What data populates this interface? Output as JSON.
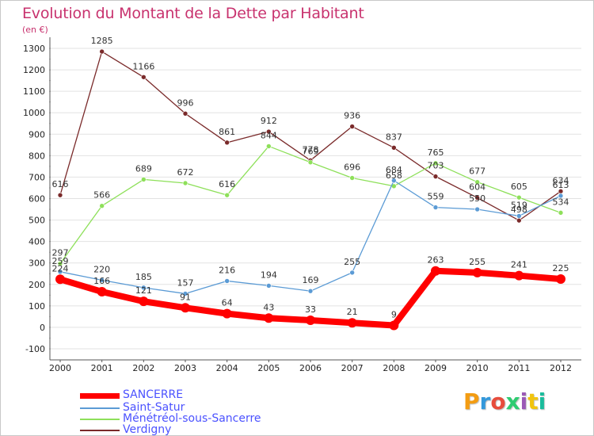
{
  "header": {
    "title": "Evolution du Montant de la Dette par Habitant",
    "unit": "(en €)"
  },
  "chart_data": {
    "type": "line",
    "title": "Evolution du Montant de la Dette par Habitant",
    "ylabel": "(en €)",
    "xlabel": "",
    "x": [
      "2000",
      "2001",
      "2002",
      "2003",
      "2004",
      "2005",
      "2006",
      "2007",
      "2008",
      "2009",
      "2010",
      "2011",
      "2012"
    ],
    "ylim": [
      -100,
      1300
    ],
    "yticks": [
      -100,
      0,
      100,
      200,
      300,
      400,
      500,
      600,
      700,
      800,
      900,
      1000,
      1100,
      1200,
      1300
    ],
    "grid": "y",
    "legend_position": "bottom-left",
    "series": [
      {
        "name": "SANCERRE",
        "color": "#ff0000",
        "values": [
          224,
          166,
          121,
          91,
          64,
          43,
          33,
          21,
          9,
          263,
          255,
          241,
          225
        ],
        "labels": [
          "224",
          "166",
          "121",
          "91",
          "64",
          "43",
          "33",
          "21",
          "9",
          "263",
          "255",
          "241",
          "225"
        ]
      },
      {
        "name": "Saint-Satur",
        "color": "#5b9bd5",
        "values": [
          259,
          220,
          185,
          157,
          216,
          194,
          169,
          255,
          684,
          559,
          550,
          519,
          613
        ],
        "labels": [
          "259",
          "220",
          "185",
          "157",
          "216",
          "194",
          "169",
          "255",
          "684",
          "559",
          "550",
          "519",
          "613"
        ]
      },
      {
        "name": "Ménétréol-sous-Sancerre",
        "color": "#8ee05a",
        "values": [
          297,
          566,
          689,
          672,
          616,
          844,
          769,
          696,
          658,
          765,
          677,
          605,
          534
        ],
        "labels": [
          "297",
          "566",
          "689",
          "672",
          "616",
          "844",
          "769",
          "696",
          "658",
          "765",
          "677",
          "605",
          "534"
        ]
      },
      {
        "name": "Verdigny",
        "color": "#7a2a2a",
        "values": [
          616,
          1285,
          1166,
          996,
          861,
          912,
          778,
          936,
          837,
          703,
          604,
          498,
          634
        ],
        "labels": [
          "616",
          "1285",
          "1166",
          "996",
          "861",
          "912",
          "778",
          "936",
          "837",
          "703",
          "604",
          "498",
          "634"
        ]
      }
    ]
  },
  "logo": {
    "text": "Proxiti",
    "colors": [
      "#f39c12",
      "#3498db",
      "#e74c3c",
      "#2ecc71",
      "#9b59b6",
      "#f1c40f",
      "#1abc9c"
    ]
  }
}
